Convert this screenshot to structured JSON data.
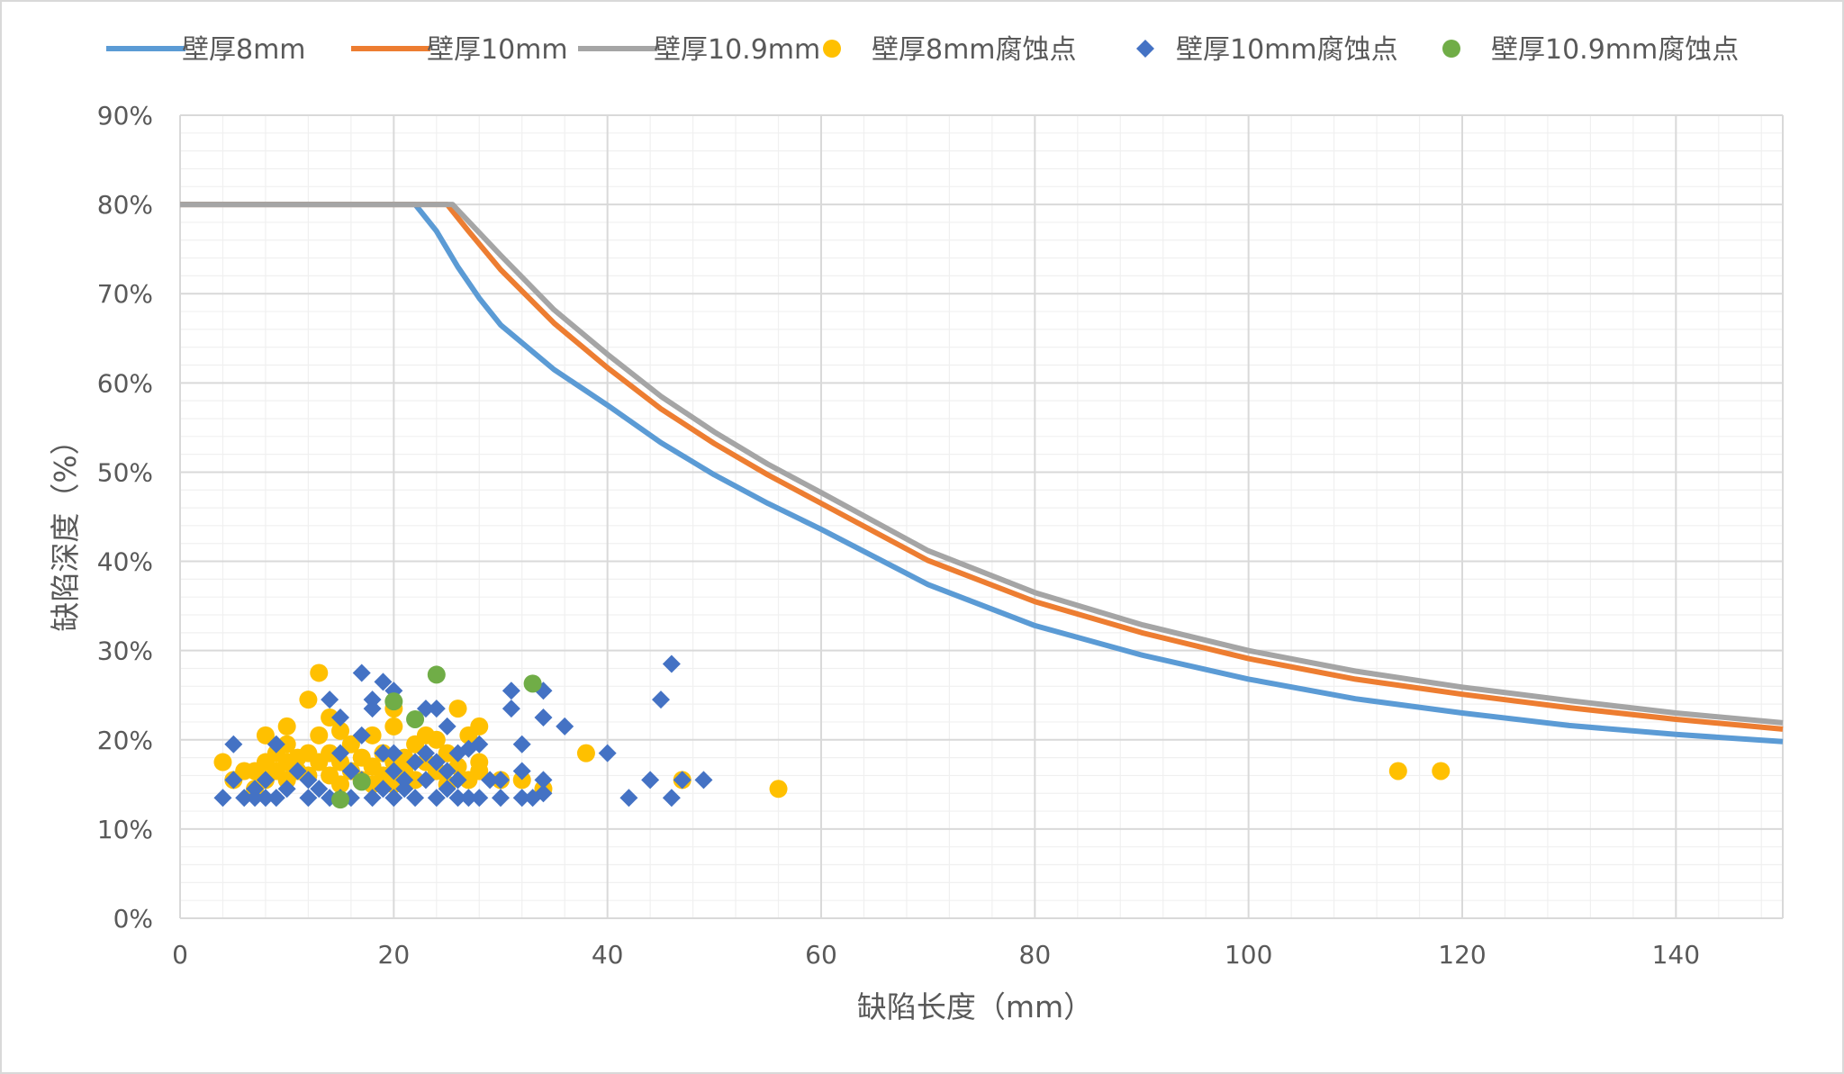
{
  "chart_data": {
    "type": "scatter",
    "title": "",
    "xlabel": "缺陷长度（mm）",
    "ylabel": "缺陷深度（%）",
    "xlim": [
      0,
      150
    ],
    "ylim": [
      0,
      0.9
    ],
    "x_ticks": [
      "0",
      "20",
      "40",
      "60",
      "80",
      "100",
      "120",
      "140"
    ],
    "y_ticks": [
      "0%",
      "10%",
      "20%",
      "30%",
      "40%",
      "50%",
      "60%",
      "70%",
      "80%",
      "90%"
    ],
    "grid": true,
    "minor_grid": true,
    "legend_position": "top",
    "series": [
      {
        "name": "壁厚8mm",
        "kind": "line",
        "color": "#5B9BD5",
        "x": [
          0,
          22,
          24,
          26,
          28,
          30,
          35,
          40,
          45,
          50,
          55,
          60,
          70,
          80,
          90,
          100,
          110,
          120,
          130,
          140,
          150
        ],
        "y": [
          0.8,
          0.8,
          0.77,
          0.73,
          0.695,
          0.665,
          0.615,
          0.575,
          0.533,
          0.497,
          0.465,
          0.436,
          0.374,
          0.328,
          0.295,
          0.268,
          0.246,
          0.23,
          0.216,
          0.206,
          0.198
        ]
      },
      {
        "name": "壁厚10mm",
        "kind": "line",
        "color": "#ED7D31",
        "x": [
          0,
          25,
          27,
          30,
          35,
          40,
          45,
          50,
          55,
          60,
          70,
          80,
          90,
          100,
          110,
          120,
          130,
          140,
          150
        ],
        "y": [
          0.8,
          0.8,
          0.77,
          0.727,
          0.667,
          0.617,
          0.571,
          0.532,
          0.497,
          0.465,
          0.401,
          0.355,
          0.32,
          0.291,
          0.268,
          0.251,
          0.236,
          0.223,
          0.212
        ]
      },
      {
        "name": "壁厚10.9mm",
        "kind": "line",
        "color": "#A5A5A5",
        "x": [
          0,
          25.5,
          27,
          30,
          35,
          40,
          45,
          50,
          55,
          60,
          70,
          80,
          90,
          100,
          110,
          120,
          130,
          140,
          150
        ],
        "y": [
          0.8,
          0.8,
          0.781,
          0.743,
          0.682,
          0.632,
          0.585,
          0.545,
          0.509,
          0.477,
          0.412,
          0.365,
          0.329,
          0.3,
          0.277,
          0.259,
          0.244,
          0.23,
          0.219
        ]
      },
      {
        "name": "壁厚8mm腐蚀点",
        "kind": "scatter",
        "marker": "circle",
        "color": "#FFC000",
        "points": [
          [
            4,
            0.175
          ],
          [
            5,
            0.155
          ],
          [
            6,
            0.165
          ],
          [
            7,
            0.145
          ],
          [
            7,
            0.165
          ],
          [
            8,
            0.205
          ],
          [
            8,
            0.175
          ],
          [
            8,
            0.155
          ],
          [
            9,
            0.185
          ],
          [
            9,
            0.165
          ],
          [
            10,
            0.215
          ],
          [
            10,
            0.195
          ],
          [
            10,
            0.175
          ],
          [
            10,
            0.155
          ],
          [
            11,
            0.165
          ],
          [
            11,
            0.18
          ],
          [
            12,
            0.245
          ],
          [
            12,
            0.185
          ],
          [
            12,
            0.16
          ],
          [
            13,
            0.275
          ],
          [
            13,
            0.205
          ],
          [
            13,
            0.175
          ],
          [
            14,
            0.225
          ],
          [
            14,
            0.185
          ],
          [
            14,
            0.16
          ],
          [
            15,
            0.21
          ],
          [
            15,
            0.175
          ],
          [
            15,
            0.15
          ],
          [
            16,
            0.195
          ],
          [
            16,
            0.165
          ],
          [
            17,
            0.18
          ],
          [
            17,
            0.155
          ],
          [
            18,
            0.205
          ],
          [
            18,
            0.17
          ],
          [
            18,
            0.15
          ],
          [
            19,
            0.185
          ],
          [
            19,
            0.16
          ],
          [
            20,
            0.235
          ],
          [
            20,
            0.215
          ],
          [
            20,
            0.175
          ],
          [
            20,
            0.15
          ],
          [
            21,
            0.165
          ],
          [
            21,
            0.18
          ],
          [
            22,
            0.195
          ],
          [
            22,
            0.155
          ],
          [
            23,
            0.205
          ],
          [
            23,
            0.175
          ],
          [
            24,
            0.2
          ],
          [
            24,
            0.165
          ],
          [
            25,
            0.185
          ],
          [
            25,
            0.15
          ],
          [
            26,
            0.235
          ],
          [
            26,
            0.17
          ],
          [
            27,
            0.205
          ],
          [
            27,
            0.155
          ],
          [
            28,
            0.215
          ],
          [
            28,
            0.175
          ],
          [
            28,
            0.165
          ],
          [
            30,
            0.155
          ],
          [
            32,
            0.155
          ],
          [
            34,
            0.145
          ],
          [
            38,
            0.185
          ],
          [
            47,
            0.155
          ],
          [
            56,
            0.145
          ],
          [
            114,
            0.165
          ],
          [
            118,
            0.165
          ]
        ]
      },
      {
        "name": "壁厚10mm腐蚀点",
        "kind": "scatter",
        "marker": "diamond",
        "color": "#4472C4",
        "points": [
          [
            4,
            0.135
          ],
          [
            5,
            0.195
          ],
          [
            5,
            0.155
          ],
          [
            6,
            0.135
          ],
          [
            7,
            0.145
          ],
          [
            7,
            0.135
          ],
          [
            8,
            0.155
          ],
          [
            8,
            0.135
          ],
          [
            9,
            0.195
          ],
          [
            9,
            0.135
          ],
          [
            10,
            0.145
          ],
          [
            11,
            0.165
          ],
          [
            12,
            0.155
          ],
          [
            12,
            0.135
          ],
          [
            13,
            0.145
          ],
          [
            14,
            0.245
          ],
          [
            14,
            0.135
          ],
          [
            15,
            0.225
          ],
          [
            15,
            0.185
          ],
          [
            15,
            0.135
          ],
          [
            16,
            0.165
          ],
          [
            16,
            0.135
          ],
          [
            17,
            0.275
          ],
          [
            17,
            0.205
          ],
          [
            17,
            0.155
          ],
          [
            18,
            0.245
          ],
          [
            18,
            0.235
          ],
          [
            18,
            0.135
          ],
          [
            19,
            0.265
          ],
          [
            19,
            0.185
          ],
          [
            19,
            0.145
          ],
          [
            20,
            0.255
          ],
          [
            20,
            0.185
          ],
          [
            20,
            0.165
          ],
          [
            20,
            0.135
          ],
          [
            21,
            0.155
          ],
          [
            21,
            0.145
          ],
          [
            22,
            0.175
          ],
          [
            22,
            0.135
          ],
          [
            23,
            0.235
          ],
          [
            23,
            0.185
          ],
          [
            23,
            0.155
          ],
          [
            24,
            0.235
          ],
          [
            24,
            0.175
          ],
          [
            24,
            0.135
          ],
          [
            25,
            0.215
          ],
          [
            25,
            0.165
          ],
          [
            25,
            0.145
          ],
          [
            26,
            0.185
          ],
          [
            26,
            0.155
          ],
          [
            26,
            0.135
          ],
          [
            27,
            0.19
          ],
          [
            27,
            0.135
          ],
          [
            28,
            0.195
          ],
          [
            28,
            0.135
          ],
          [
            29,
            0.155
          ],
          [
            30,
            0.155
          ],
          [
            30,
            0.135
          ],
          [
            31,
            0.255
          ],
          [
            31,
            0.235
          ],
          [
            32,
            0.195
          ],
          [
            32,
            0.165
          ],
          [
            32,
            0.135
          ],
          [
            33,
            0.135
          ],
          [
            34,
            0.255
          ],
          [
            34,
            0.225
          ],
          [
            34,
            0.155
          ],
          [
            34,
            0.14
          ],
          [
            36,
            0.215
          ],
          [
            40,
            0.185
          ],
          [
            42,
            0.135
          ],
          [
            44,
            0.155
          ],
          [
            45,
            0.245
          ],
          [
            46,
            0.285
          ],
          [
            46,
            0.135
          ],
          [
            47,
            0.155
          ],
          [
            49,
            0.155
          ]
        ]
      },
      {
        "name": "壁厚10.9mm腐蚀点",
        "kind": "scatter",
        "marker": "circle",
        "color": "#70AD47",
        "points": [
          [
            15,
            0.133
          ],
          [
            17,
            0.153
          ],
          [
            20,
            0.243
          ],
          [
            22,
            0.223
          ],
          [
            24,
            0.273
          ],
          [
            33,
            0.263
          ]
        ]
      }
    ]
  }
}
